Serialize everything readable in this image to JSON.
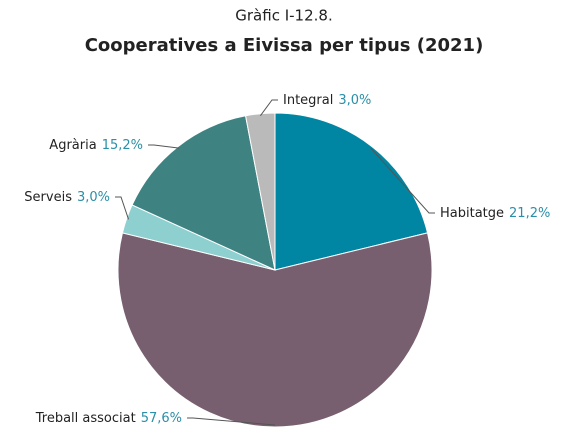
{
  "chart_data": {
    "type": "pie",
    "title": "Gràfic I-12.8.",
    "subtitle": "Cooperatives a Eivissa per tipus (2021)",
    "categories": [
      "Habitatge",
      "Treball associat",
      "Serveis",
      "Agrària",
      "Integral"
    ],
    "values": [
      21.2,
      57.6,
      3.0,
      15.2,
      3.0
    ],
    "value_labels": [
      "21,2%",
      "57,6%",
      "3,0%",
      "15,2%",
      "3,0%"
    ],
    "colors": [
      "#0086a3",
      "#785f70",
      "#8ecfcf",
      "#3e8282",
      "#bababa"
    ],
    "label_color": "#2a8fa8"
  }
}
